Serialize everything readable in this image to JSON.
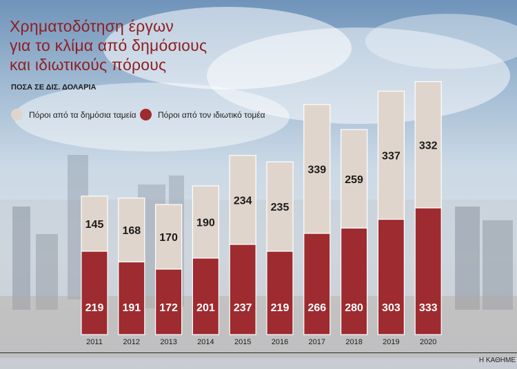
{
  "title_lines": [
    "Χρηματοδότηση έργων",
    "για το κλίμα από δημόσιους",
    "και ιδιωτικούς πόρους"
  ],
  "subtitle": "ΠΟΣΑ ΣΕ ΔΙΣ. ΔΟΛΑΡΙΑ",
  "source": "Η ΚΑΘΗΜΕ",
  "colors": {
    "public": "#e0d5cc",
    "private": "#9e2b2f"
  },
  "chart_data": {
    "type": "bar",
    "stacked": true,
    "categories": [
      "2011",
      "2012",
      "2013",
      "2014",
      "2015",
      "2016",
      "2017",
      "2018",
      "2019",
      "2020"
    ],
    "series": [
      {
        "name": "Πόροι από τον ιδιωτικό τομέα",
        "values": [
          219,
          191,
          172,
          201,
          237,
          219,
          266,
          280,
          303,
          333
        ]
      },
      {
        "name": "Πόροι από τα δημόσια ταμεία",
        "values": [
          145,
          168,
          170,
          190,
          234,
          235,
          339,
          259,
          337,
          332
        ]
      }
    ],
    "legend": "top-left",
    "grid": false
  }
}
